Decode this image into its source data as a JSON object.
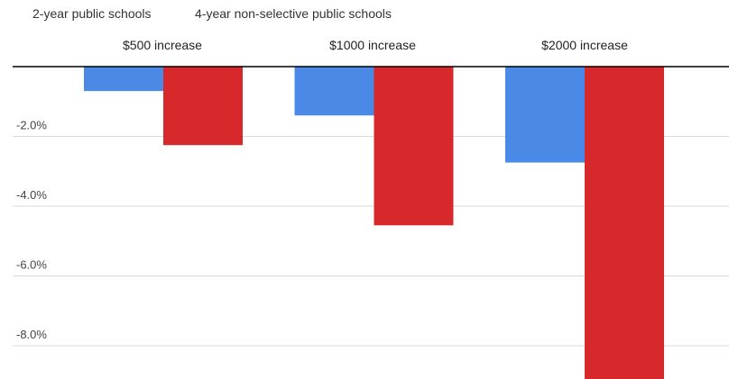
{
  "chart_data": {
    "type": "bar",
    "title": "",
    "xlabel": "",
    "ylabel": "",
    "categories": [
      "$500 increase",
      "$1000 increase",
      "$2000 increase"
    ],
    "series": [
      {
        "name": "2-year public schools",
        "color": "#4a8ae6",
        "values": [
          -0.7,
          -1.4,
          -2.75
        ]
      },
      {
        "name": "4-year non-selective public schools",
        "color": "#d7282b",
        "values": [
          -2.25,
          -4.55,
          -9.0
        ]
      }
    ],
    "yticks": [
      -2.0,
      -4.0,
      -6.0,
      -8.0
    ],
    "ytick_labels": [
      "-2.0%",
      "-4.0%",
      "-6.0%",
      "-8.0%"
    ],
    "ylim": [
      -9.0,
      0
    ],
    "grid": true,
    "legend_position": "top-left",
    "category_label_position": "top"
  }
}
